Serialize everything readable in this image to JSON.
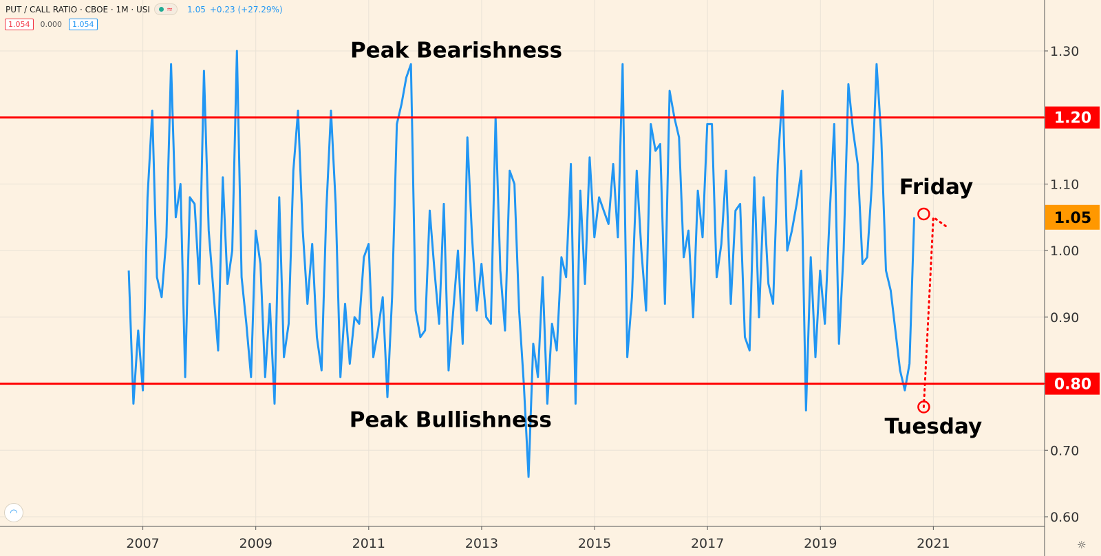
{
  "header": {
    "symbol": "PUT / CALL RATIO · CBOE · 1M · USI",
    "last_value": "1.05",
    "change": "+0.23 (+27.29%)"
  },
  "legend": {
    "value_red": "1.054",
    "value_zero": "0.000",
    "value_blue": "1.054"
  },
  "icons": {
    "logo": "tradingview-logo-icon",
    "settings": "gear-icon"
  },
  "colors": {
    "background": "#fdf2e2",
    "line": "#2196f3",
    "threshold": "#ff0000",
    "current_label": "#ff9800"
  },
  "chart_data": {
    "type": "line",
    "title": "PUT / CALL RATIO",
    "series": [
      {
        "name": "Put/Call Ratio (CBOE, monthly)",
        "x_start": 2006.75,
        "x_step": 0.0833,
        "values": [
          0.97,
          0.77,
          0.88,
          0.79,
          1.08,
          1.21,
          0.96,
          0.93,
          1.02,
          1.28,
          1.05,
          1.1,
          0.81,
          1.08,
          1.07,
          0.95,
          1.27,
          1.03,
          0.94,
          0.85,
          1.11,
          0.95,
          1.0,
          1.3,
          0.96,
          0.89,
          0.81,
          1.03,
          0.98,
          0.81,
          0.92,
          0.77,
          1.08,
          0.84,
          0.89,
          1.12,
          1.21,
          1.03,
          0.92,
          1.01,
          0.87,
          0.82,
          1.06,
          1.21,
          1.07,
          0.81,
          0.92,
          0.83,
          0.9,
          0.89,
          0.99,
          1.01,
          0.84,
          0.88,
          0.93,
          0.78,
          0.93,
          1.19,
          1.22,
          1.26,
          1.28,
          0.91,
          0.87,
          0.88,
          1.06,
          0.97,
          0.89,
          1.07,
          0.82,
          0.91,
          1.0,
          0.86,
          1.17,
          1.02,
          0.91,
          0.98,
          0.9,
          0.89,
          1.2,
          0.97,
          0.88,
          1.12,
          1.1,
          0.91,
          0.8,
          0.66,
          0.86,
          0.81,
          0.96,
          0.77,
          0.89,
          0.85,
          0.99,
          0.96,
          1.13,
          0.77,
          1.09,
          0.95,
          1.14,
          1.02,
          1.08,
          1.06,
          1.04,
          1.13,
          1.02,
          1.28,
          0.84,
          0.93,
          1.12,
          1.0,
          0.91,
          1.19,
          1.15,
          1.16,
          0.92,
          1.24,
          1.2,
          1.17,
          0.99,
          1.03,
          0.9,
          1.09,
          1.02,
          1.19,
          1.19,
          0.96,
          1.01,
          1.12,
          0.92,
          1.06,
          1.07,
          0.87,
          0.85,
          1.11,
          0.9,
          1.08,
          0.95,
          0.92,
          1.13,
          1.24,
          1.0,
          1.03,
          1.07,
          1.12,
          0.76,
          0.99,
          0.84,
          0.97,
          0.89,
          1.05,
          1.19,
          0.86,
          1.0,
          1.25,
          1.18,
          1.13,
          0.98,
          0.99,
          1.1,
          1.28,
          1.17,
          0.97,
          0.94,
          0.88,
          0.82,
          0.79,
          0.83,
          1.05
        ]
      }
    ],
    "reference_lines": [
      {
        "value": 1.2,
        "label": "1.20"
      },
      {
        "value": 0.8,
        "label": "0.80"
      }
    ],
    "current_value": {
      "value": 1.05,
      "label": "1.05"
    },
    "annotations": [
      {
        "text": "Peak Bearishness",
        "x": 2012.55,
        "y": 1.29
      },
      {
        "text": "Peak Bullishness",
        "x": 2012.45,
        "y": 0.735
      },
      {
        "text": "Friday",
        "x": 2021.05,
        "y": 1.085
      },
      {
        "text": "Tuesday",
        "x": 2021.0,
        "y": 0.725
      }
    ],
    "markers": [
      {
        "name": "friday-marker",
        "x": 2020.83,
        "y": 1.055
      },
      {
        "name": "tuesday-marker",
        "x": 2020.83,
        "y": 0.765
      }
    ],
    "arrow": {
      "from": {
        "x": 2020.83,
        "y": 0.765
      },
      "to": {
        "x": 2021.0,
        "y": 1.05
      },
      "tail": {
        "x": 2021.25,
        "y": 1.035
      }
    },
    "x_ticks": [
      "2007",
      "2009",
      "2011",
      "2013",
      "2015",
      "2017",
      "2019",
      "2021"
    ],
    "x_tick_values": [
      2007,
      2009,
      2011,
      2013,
      2015,
      2017,
      2019,
      2021
    ],
    "y_ticks": [
      "0.60",
      "0.70",
      "0.80",
      "0.90",
      "1.00",
      "1.10",
      "1.20",
      "1.30"
    ],
    "y_tick_values": [
      0.6,
      0.7,
      0.8,
      0.9,
      1.0,
      1.1,
      1.2,
      1.3
    ],
    "xlim": [
      2004.47,
      2022.97
    ],
    "ylim": [
      0.6,
      1.35
    ],
    "grid": true
  }
}
